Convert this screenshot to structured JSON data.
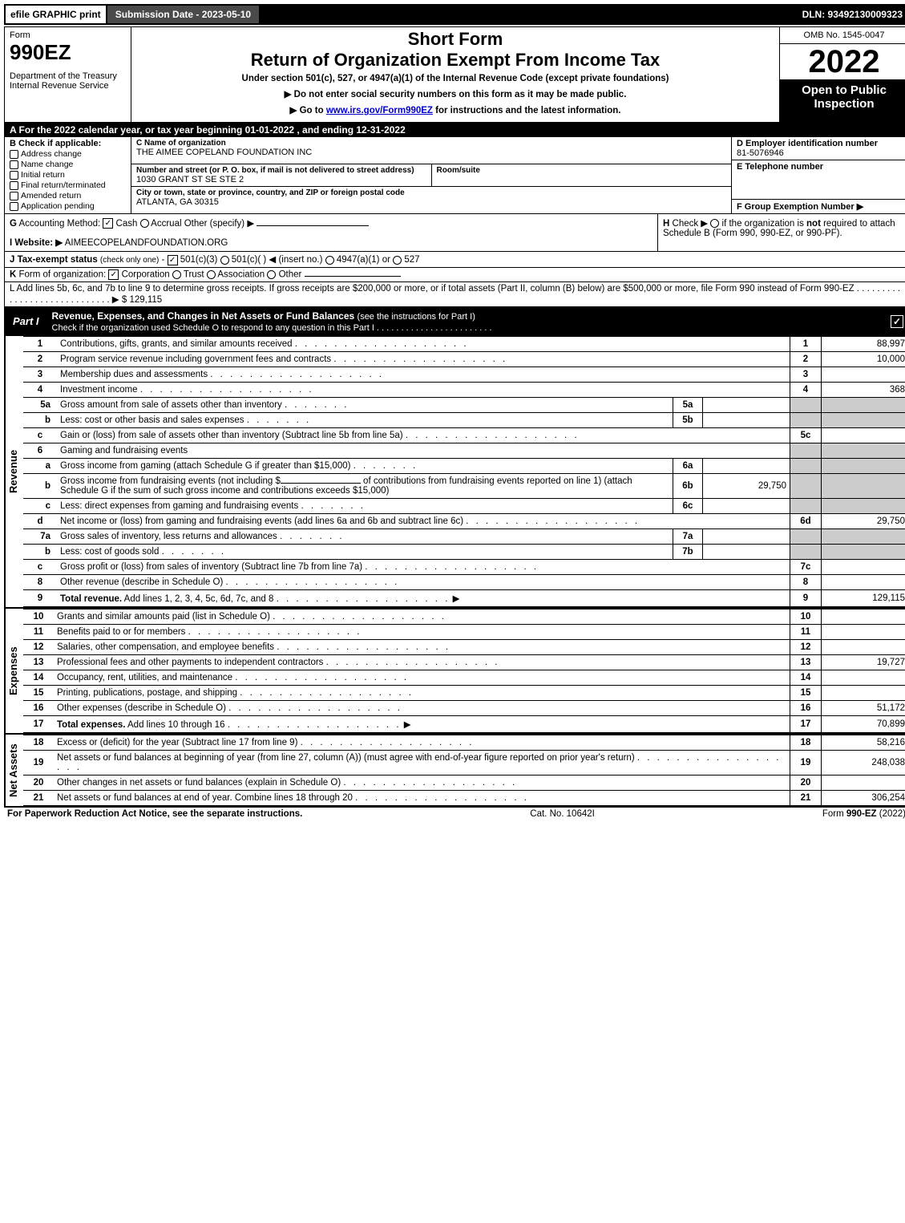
{
  "top_bar": {
    "efile": "efile GRAPHIC print",
    "submission": "Submission Date - 2023-05-10",
    "dln": "DLN: 93492130009323"
  },
  "header": {
    "form_word": "Form",
    "form_number": "990EZ",
    "dept": "Department of the Treasury\nInternal Revenue Service",
    "short_form": "Short Form",
    "main_title": "Return of Organization Exempt From Income Tax",
    "subtitle": "Under section 501(c), 527, or 4947(a)(1) of the Internal Revenue Code (except private foundations)",
    "note1": "▶ Do not enter social security numbers on this form as it may be made public.",
    "note2_pre": "▶ Go to ",
    "note2_link": "www.irs.gov/Form990EZ",
    "note2_post": " for instructions and the latest information.",
    "omb": "OMB No. 1545-0047",
    "year": "2022",
    "inspection": "Open to Public Inspection"
  },
  "section_a": "A  For the 2022 calendar year, or tax year beginning 01-01-2022  , and ending 12-31-2022",
  "section_b": {
    "label": "B  Check if applicable:",
    "items": [
      "Address change",
      "Name change",
      "Initial return",
      "Final return/terminated",
      "Amended return",
      "Application pending"
    ]
  },
  "section_c": {
    "name_label": "C Name of organization",
    "name": "THE AIMEE COPELAND FOUNDATION INC",
    "street_label": "Number and street (or P. O. box, if mail is not delivered to street address)",
    "street": "1030 GRANT ST SE STE 2",
    "room_label": "Room/suite",
    "city_label": "City or town, state or province, country, and ZIP or foreign postal code",
    "city": "ATLANTA, GA  30315"
  },
  "section_d": {
    "label": "D Employer identification number",
    "value": "81-5076946"
  },
  "section_e": {
    "label": "E Telephone number",
    "value": ""
  },
  "section_f": {
    "label": "F Group Exemption Number  ▶",
    "value": ""
  },
  "section_g": "G Accounting Method:   ☑ Cash  ◯ Accrual   Other (specify) ▶",
  "section_h": "H  Check ▶  ◯  if the organization is not required to attach Schedule B (Form 990, 990-EZ, or 990-PF).",
  "section_i": {
    "label": "I Website: ▶",
    "value": "AIMEECOPELANDFOUNDATION.ORG"
  },
  "section_j": "J Tax-exempt status (check only one) -  ☑ 501(c)(3)  ◯ 501(c)(  ) ◀ (insert no.)  ◯ 4947(a)(1) or  ◯ 527",
  "section_k": "K Form of organization:   ☑ Corporation  ◯ Trust  ◯ Association  ◯ Other",
  "section_l": {
    "text": "L Add lines 5b, 6c, and 7b to line 9 to determine gross receipts. If gross receipts are $200,000 or more, or if total assets (Part II, column (B) below) are $500,000 or more, file Form 990 instead of Form 990-EZ . . . . . . . . . . . . . . . . . . . . . . . . . . . . . ▶ $ ",
    "value": "129,115"
  },
  "part1": {
    "label": "Part I",
    "title": "Revenue, Expenses, and Changes in Net Assets or Fund Balances ",
    "sub": "(see the instructions for Part I)",
    "check_text": "Check if the organization used Schedule O to respond to any question in this Part I  . . . . . . . . . . . . . . . . . . . . . . . ."
  },
  "revenue": [
    {
      "n": "1",
      "desc": "Contributions, gifts, grants, and similar amounts received",
      "label": "1",
      "val": "88,997"
    },
    {
      "n": "2",
      "desc": "Program service revenue including government fees and contracts",
      "label": "2",
      "val": "10,000"
    },
    {
      "n": "3",
      "desc": "Membership dues and assessments",
      "label": "3",
      "val": ""
    },
    {
      "n": "4",
      "desc": "Investment income",
      "label": "4",
      "val": "368"
    }
  ],
  "line5": {
    "a": {
      "n": "5a",
      "desc": "Gross amount from sale of assets other than inventory",
      "ml": "5a",
      "mv": ""
    },
    "b": {
      "n": "b",
      "desc": "Less: cost or other basis and sales expenses",
      "ml": "5b",
      "mv": ""
    },
    "c": {
      "n": "c",
      "desc": "Gain or (loss) from sale of assets other than inventory (Subtract line 5b from line 5a)",
      "label": "5c",
      "val": ""
    }
  },
  "line6": {
    "head": {
      "n": "6",
      "desc": "Gaming and fundraising events"
    },
    "a": {
      "n": "a",
      "desc": "Gross income from gaming (attach Schedule G if greater than $15,000)",
      "ml": "6a",
      "mv": ""
    },
    "b": {
      "n": "b",
      "desc1": "Gross income from fundraising events (not including $",
      "desc2": " of contributions from fundraising events reported on line 1) (attach Schedule G if the sum of such gross income and contributions exceeds $15,000)",
      "ml": "6b",
      "mv": "29,750"
    },
    "c": {
      "n": "c",
      "desc": "Less: direct expenses from gaming and fundraising events",
      "ml": "6c",
      "mv": ""
    },
    "d": {
      "n": "d",
      "desc": "Net income or (loss) from gaming and fundraising events (add lines 6a and 6b and subtract line 6c)",
      "label": "6d",
      "val": "29,750"
    }
  },
  "line7": {
    "a": {
      "n": "7a",
      "desc": "Gross sales of inventory, less returns and allowances",
      "ml": "7a",
      "mv": ""
    },
    "b": {
      "n": "b",
      "desc": "Less: cost of goods sold",
      "ml": "7b",
      "mv": ""
    },
    "c": {
      "n": "c",
      "desc": "Gross profit or (loss) from sales of inventory (Subtract line 7b from line 7a)",
      "label": "7c",
      "val": ""
    }
  },
  "line8": {
    "n": "8",
    "desc": "Other revenue (describe in Schedule O)",
    "label": "8",
    "val": ""
  },
  "line9": {
    "n": "9",
    "desc": "Total revenue. Add lines 1, 2, 3, 4, 5c, 6d, 7c, and 8",
    "label": "9",
    "val": "129,115"
  },
  "expenses": [
    {
      "n": "10",
      "desc": "Grants and similar amounts paid (list in Schedule O)",
      "label": "10",
      "val": ""
    },
    {
      "n": "11",
      "desc": "Benefits paid to or for members",
      "label": "11",
      "val": ""
    },
    {
      "n": "12",
      "desc": "Salaries, other compensation, and employee benefits",
      "label": "12",
      "val": ""
    },
    {
      "n": "13",
      "desc": "Professional fees and other payments to independent contractors",
      "label": "13",
      "val": "19,727"
    },
    {
      "n": "14",
      "desc": "Occupancy, rent, utilities, and maintenance",
      "label": "14",
      "val": ""
    },
    {
      "n": "15",
      "desc": "Printing, publications, postage, and shipping",
      "label": "15",
      "val": ""
    },
    {
      "n": "16",
      "desc": "Other expenses (describe in Schedule O)",
      "label": "16",
      "val": "51,172"
    },
    {
      "n": "17",
      "desc": "Total expenses. Add lines 10 through 16",
      "label": "17",
      "val": "70,899",
      "bold": true,
      "arrow": true
    }
  ],
  "netassets": [
    {
      "n": "18",
      "desc": "Excess or (deficit) for the year (Subtract line 17 from line 9)",
      "label": "18",
      "val": "58,216"
    },
    {
      "n": "19",
      "desc": "Net assets or fund balances at beginning of year (from line 27, column (A)) (must agree with end-of-year figure reported on prior year's return)",
      "label": "19",
      "val": "248,038"
    },
    {
      "n": "20",
      "desc": "Other changes in net assets or fund balances (explain in Schedule O)",
      "label": "20",
      "val": ""
    },
    {
      "n": "21",
      "desc": "Net assets or fund balances at end of year. Combine lines 18 through 20",
      "label": "21",
      "val": "306,254"
    }
  ],
  "side_labels": {
    "revenue": "Revenue",
    "expenses": "Expenses",
    "netassets": "Net Assets"
  },
  "footer": {
    "left": "For Paperwork Reduction Act Notice, see the separate instructions.",
    "center": "Cat. No. 10642I",
    "right_pre": "Form ",
    "right_bold": "990-EZ",
    "right_post": " (2022)"
  }
}
